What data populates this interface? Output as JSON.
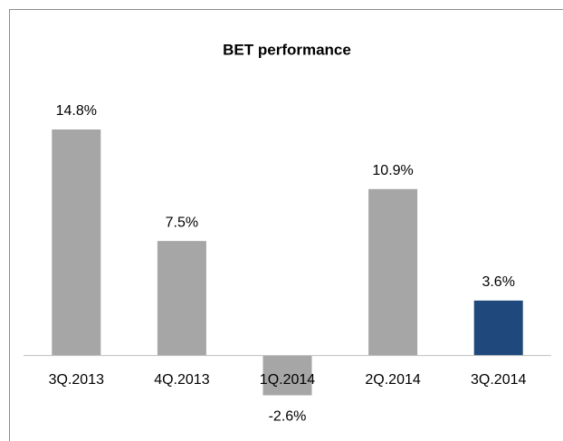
{
  "chart_data": {
    "type": "bar",
    "title": "BET performance",
    "categories": [
      "3Q.2013",
      "4Q.2013",
      "1Q.2014",
      "2Q.2014",
      "3Q.2014"
    ],
    "values": [
      14.8,
      7.5,
      -2.6,
      10.9,
      3.6
    ],
    "value_labels": [
      "14.8%",
      "7.5%",
      "-2.6%",
      "10.9%",
      "3.6%"
    ],
    "colors": [
      "#a6a6a6",
      "#a6a6a6",
      "#a6a6a6",
      "#a6a6a6",
      "#1f497d"
    ],
    "ylim": [
      -5,
      18
    ]
  }
}
